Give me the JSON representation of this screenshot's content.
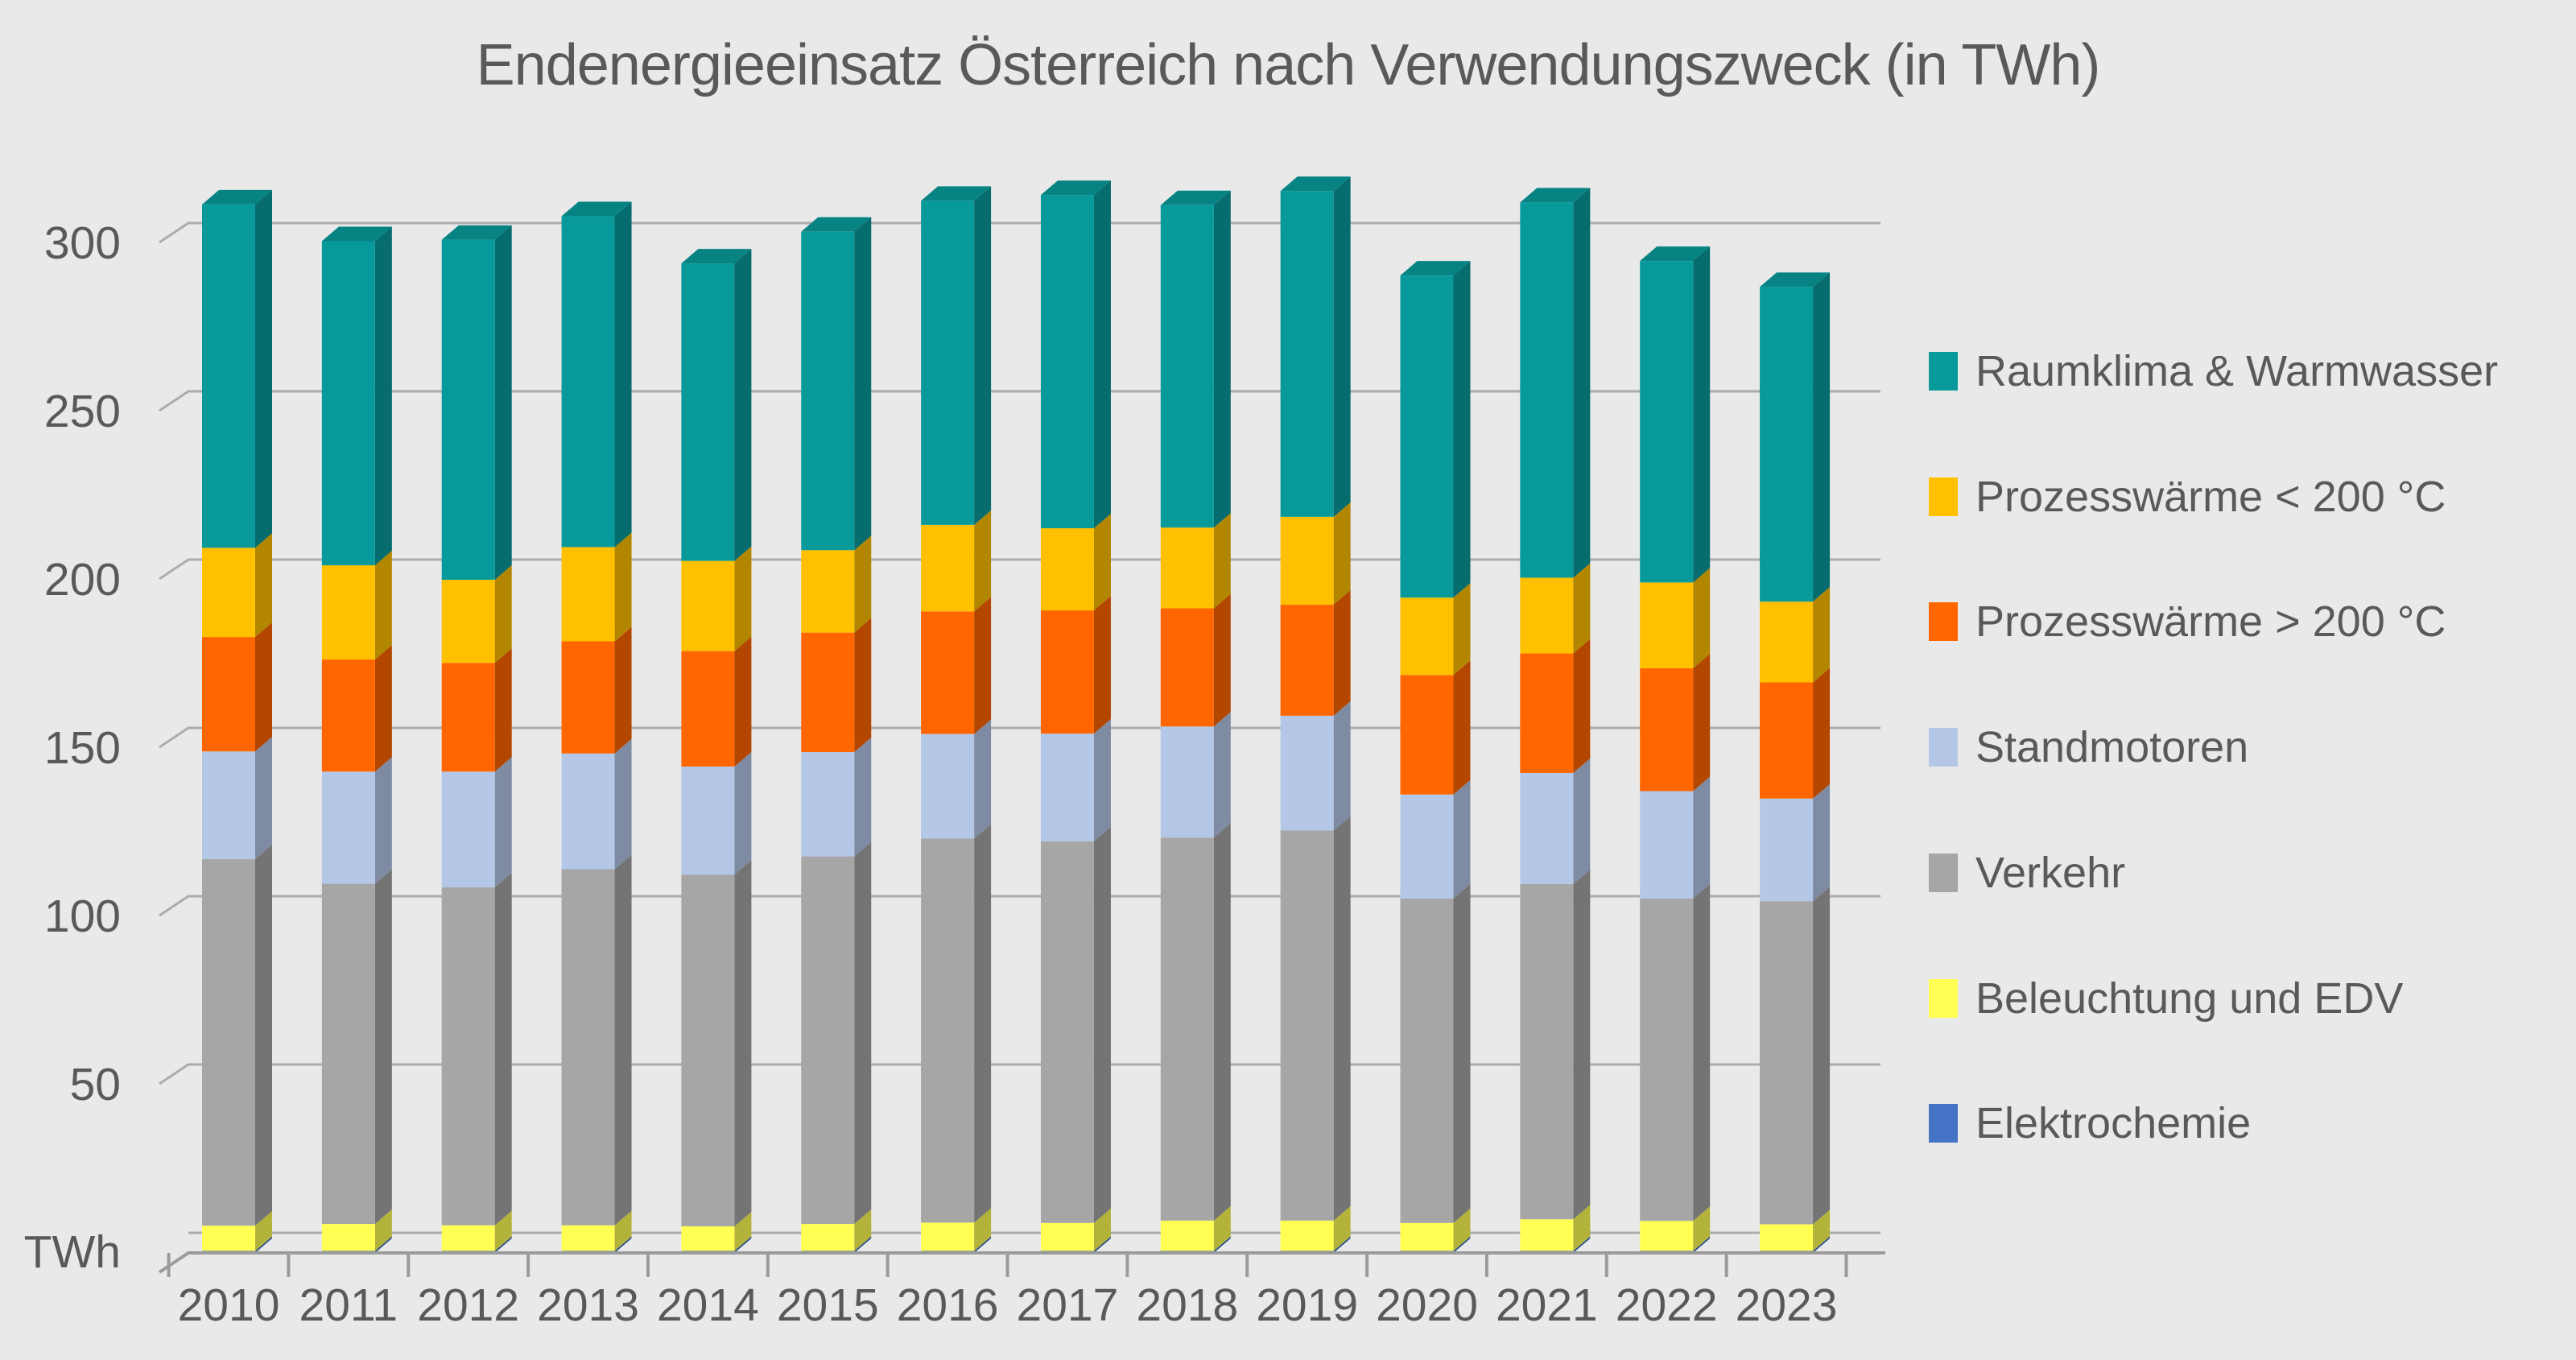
{
  "title": "Endenergieeinsatz Österreich nach Verwendungszweck (in TWh)",
  "axis": {
    "unit_label": "TWh",
    "y_ticks": [
      300,
      250,
      200,
      150,
      100,
      50
    ],
    "y_max": 330,
    "grid_color": "#ACACAC",
    "axis_color": "#9B9B9B",
    "text_color": "#595959"
  },
  "legend": {
    "position": "right",
    "items": [
      {
        "key": "raumklima",
        "label": "Raumklima & Warmwasser",
        "color": "#089A9B"
      },
      {
        "key": "prozess_lt200",
        "label": "Prozesswärme < 200 °C",
        "color": "#FFC000"
      },
      {
        "key": "prozess_gt200",
        "label": "Prozesswärme > 200 °C",
        "color": "#FF6600"
      },
      {
        "key": "standmotoren",
        "label": "Standmotoren",
        "color": "#B4C7E7"
      },
      {
        "key": "verkehr",
        "label": "Verkehr",
        "color": "#A6A6A6"
      },
      {
        "key": "beleuchtung",
        "label": "Beleuchtung und EDV",
        "color": "#FFFF54"
      },
      {
        "key": "elektrochemie",
        "label": "Elektrochemie",
        "color": "#4472C4"
      }
    ]
  },
  "chart_data": {
    "type": "bar",
    "stacked": true,
    "projection": "3d-oblique",
    "title": "Endenergieeinsatz Österreich nach Verwendungszweck (in TWh)",
    "xlabel": "",
    "ylabel": "TWh",
    "ylim": [
      0,
      330
    ],
    "grid": true,
    "legend_position": "right",
    "categories": [
      2010,
      2011,
      2012,
      2013,
      2014,
      2015,
      2016,
      2017,
      2018,
      2019,
      2020,
      2021,
      2022,
      2023
    ],
    "series": [
      {
        "key": "elektrochemie",
        "name": "Elektrochemie",
        "color": "#4472C4",
        "values": [
          0.6,
          0.6,
          0.6,
          0.6,
          0.6,
          0.6,
          0.6,
          0.6,
          0.6,
          0.6,
          0.6,
          0.6,
          0.6,
          0.6
        ]
      },
      {
        "key": "beleuchtung",
        "name": "Beleuchtung und EDV",
        "color": "#FFFF54",
        "values": [
          7.5,
          8.0,
          7.6,
          7.6,
          7.3,
          8.0,
          8.4,
          8.3,
          9.0,
          9.0,
          8.3,
          9.4,
          8.9,
          7.9
        ]
      },
      {
        "key": "verkehr",
        "name": "Verkehr",
        "color": "#A6A6A6",
        "values": [
          108.9,
          101.1,
          100.4,
          105.8,
          104.5,
          109.2,
          114.1,
          113.4,
          113.8,
          115.9,
          96.4,
          99.6,
          95.8,
          96.0
        ]
      },
      {
        "key": "standmotoren",
        "name": "Standmotoren",
        "color": "#B4C7E7",
        "values": [
          32.0,
          33.3,
          34.4,
          34.4,
          32.1,
          31.0,
          31.1,
          32.0,
          33.0,
          34.1,
          30.9,
          33.0,
          31.9,
          30.5
        ]
      },
      {
        "key": "prozess_gt200",
        "name": "Prozesswärme > 200 °C",
        "color": "#FF6600",
        "values": [
          34.0,
          33.3,
          32.3,
          33.3,
          34.3,
          35.5,
          36.4,
          36.6,
          35.1,
          33.0,
          35.5,
          35.5,
          36.5,
          34.5
        ]
      },
      {
        "key": "prozess_lt200",
        "name": "Prozesswärme < 200 °C",
        "color": "#FFC000",
        "values": [
          26.5,
          28.0,
          24.7,
          28.0,
          26.8,
          24.5,
          25.7,
          24.4,
          24.0,
          26.1,
          23.0,
          22.5,
          25.5,
          24.0
        ]
      },
      {
        "key": "raumklima",
        "name": "Raumklima & Warmwasser",
        "color": "#089A9B",
        "values": [
          102.0,
          96.3,
          101.0,
          98.3,
          88.4,
          94.6,
          96.3,
          99.0,
          95.8,
          96.8,
          95.7,
          111.5,
          95.5,
          93.5
        ]
      }
    ]
  }
}
